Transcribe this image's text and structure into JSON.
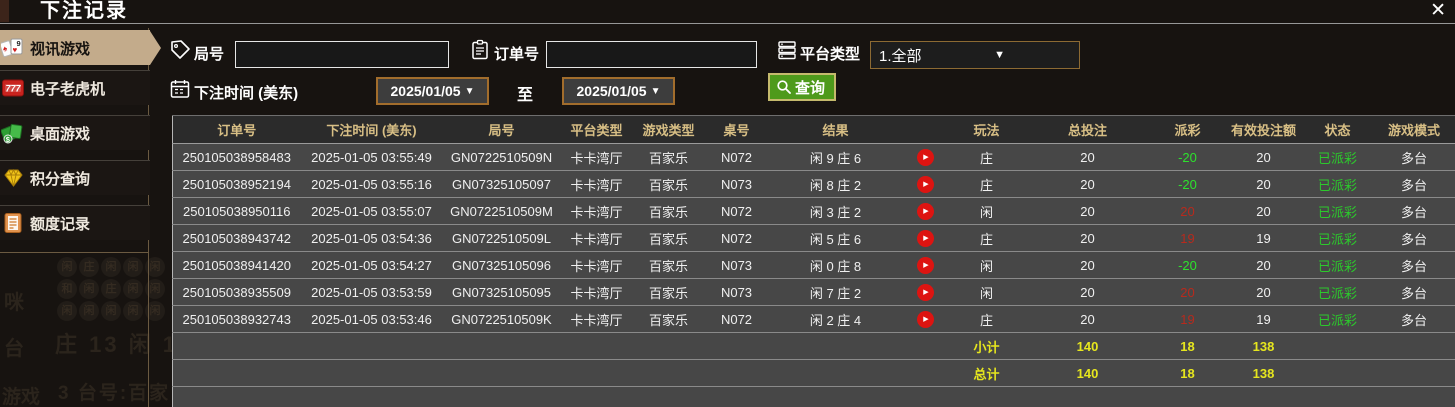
{
  "window": {
    "title": "下注记录",
    "close_glyph": "✕"
  },
  "sidebar": {
    "items": [
      {
        "label": "视讯游戏",
        "icon": "video-games-cards-icon",
        "selected": true
      },
      {
        "label": "电子老虎机",
        "icon": "slot-machine-icon",
        "selected": false
      },
      {
        "label": "桌面游戏",
        "icon": "table-games-icon",
        "selected": false
      },
      {
        "label": "积分查询",
        "icon": "points-diamond-icon",
        "selected": false
      },
      {
        "label": "额度记录",
        "icon": "quota-document-icon",
        "selected": false
      }
    ]
  },
  "filters": {
    "round_label": "局号",
    "round_value": "",
    "order_label": "订单号",
    "order_value": "",
    "platform_label": "平台类型",
    "platform_value": "1.全部",
    "bet_time_label": "下注时间 (美东)",
    "date_from": "2025/01/05",
    "date_to": "2025/01/05",
    "to_label": "至",
    "search_label": "查询",
    "dropdown_arrow": "▼"
  },
  "table": {
    "play_glyph": "▶",
    "headers": [
      "订单号",
      "下注时间 (美东)",
      "局号",
      "平台类型",
      "游戏类型",
      "桌号",
      "结果",
      "",
      "玩法",
      "总投注",
      "派彩",
      "有效投注额",
      "状态",
      "游戏模式"
    ],
    "rows": [
      {
        "order": "250105038958483",
        "time": "2025-01-05 03:55:49",
        "round": "GN0722510509N",
        "platform": "卡卡湾厅",
        "game": "百家乐",
        "table_no": "N072",
        "result": "闲 9 庄 6",
        "bet": "庄",
        "total": "20",
        "payout": "-20",
        "payout_color": "green",
        "valid": "20",
        "status": "已派彩",
        "mode": "多台"
      },
      {
        "order": "250105038952194",
        "time": "2025-01-05 03:55:16",
        "round": "GN07325105097",
        "platform": "卡卡湾厅",
        "game": "百家乐",
        "table_no": "N073",
        "result": "闲 8 庄 2",
        "bet": "庄",
        "total": "20",
        "payout": "-20",
        "payout_color": "green",
        "valid": "20",
        "status": "已派彩",
        "mode": "多台"
      },
      {
        "order": "250105038950116",
        "time": "2025-01-05 03:55:07",
        "round": "GN0722510509M",
        "platform": "卡卡湾厅",
        "game": "百家乐",
        "table_no": "N072",
        "result": "闲 3 庄 2",
        "bet": "闲",
        "total": "20",
        "payout": "20",
        "payout_color": "red",
        "valid": "20",
        "status": "已派彩",
        "mode": "多台"
      },
      {
        "order": "250105038943742",
        "time": "2025-01-05 03:54:36",
        "round": "GN0722510509L",
        "platform": "卡卡湾厅",
        "game": "百家乐",
        "table_no": "N072",
        "result": "闲 5 庄 6",
        "bet": "庄",
        "total": "20",
        "payout": "19",
        "payout_color": "red",
        "valid": "19",
        "status": "已派彩",
        "mode": "多台"
      },
      {
        "order": "250105038941420",
        "time": "2025-01-05 03:54:27",
        "round": "GN07325105096",
        "platform": "卡卡湾厅",
        "game": "百家乐",
        "table_no": "N073",
        "result": "闲 0 庄 8",
        "bet": "闲",
        "total": "20",
        "payout": "-20",
        "payout_color": "green",
        "valid": "20",
        "status": "已派彩",
        "mode": "多台"
      },
      {
        "order": "250105038935509",
        "time": "2025-01-05 03:53:59",
        "round": "GN07325105095",
        "platform": "卡卡湾厅",
        "game": "百家乐",
        "table_no": "N073",
        "result": "闲 7 庄 2",
        "bet": "闲",
        "total": "20",
        "payout": "20",
        "payout_color": "red",
        "valid": "20",
        "status": "已派彩",
        "mode": "多台"
      },
      {
        "order": "250105038932743",
        "time": "2025-01-05 03:53:46",
        "round": "GN0722510509K",
        "platform": "卡卡湾厅",
        "game": "百家乐",
        "table_no": "N072",
        "result": "闲 2 庄 4",
        "bet": "庄",
        "total": "20",
        "payout": "19",
        "payout_color": "red",
        "valid": "19",
        "status": "已派彩",
        "mode": "多台"
      }
    ],
    "subtotal": {
      "label": "小计",
      "total": "140",
      "payout": "18",
      "valid": "138"
    },
    "total": {
      "label": "总计",
      "total": "140",
      "payout": "18",
      "valid": "138"
    }
  },
  "background_ghost": {
    "grid_chars": [
      [
        "闲",
        "庄",
        "闲",
        "闲",
        "闲"
      ],
      [
        "和",
        "闲",
        "庄",
        "闲",
        "闲"
      ],
      [
        "闲",
        "闲",
        "闲",
        "闲",
        "闲"
      ]
    ],
    "line1": "庄 13  闲 1",
    "line2": "3  台号:百家",
    "side_chars": [
      "咪",
      "台",
      "游戏"
    ]
  },
  "colors": {
    "accent_tan": "#c3ab8b",
    "header_gold": "#d8bf85",
    "win_red": "#b72a1d",
    "loss_green": "#2de12d",
    "paid_green": "#2cc92c",
    "total_yellow": "#e6e61e",
    "search_green": "#4e9a1b",
    "date_border": "#a26d2c"
  }
}
